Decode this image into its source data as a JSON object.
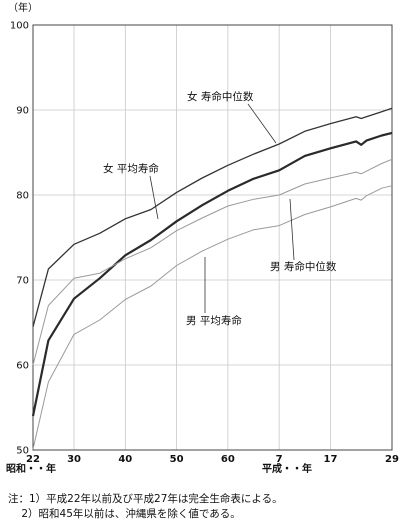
{
  "chart_data": {
    "type": "line",
    "ylabel": "（年）",
    "ylim": [
      50,
      100
    ],
    "yticks": [
      50,
      60,
      70,
      80,
      90,
      100
    ],
    "xlim": [
      1947,
      2017
    ],
    "xticks": [
      {
        "year": 1947,
        "label": "22"
      },
      {
        "year": 1955,
        "label": "30"
      },
      {
        "year": 1965,
        "label": "40"
      },
      {
        "year": 1975,
        "label": "50"
      },
      {
        "year": 1985,
        "label": "60"
      },
      {
        "year": 1995,
        "label": "7"
      },
      {
        "year": 2005,
        "label": "17"
      },
      {
        "year": 2017,
        "label": "29"
      }
    ],
    "era_labels": {
      "showa": "昭和・・年",
      "heisei": "平成・・年"
    },
    "grid": true,
    "series": [
      {
        "name": "女  寿命中位数",
        "style": "thin-dark",
        "x": [
          1947,
          1950,
          1955,
          1960,
          1965,
          1970,
          1975,
          1980,
          1985,
          1990,
          1995,
          2000,
          2005,
          2010,
          2011,
          2012,
          2015,
          2017
        ],
        "y": [
          64.5,
          71.3,
          74.2,
          75.5,
          77.2,
          78.3,
          80.3,
          82.0,
          83.5,
          84.8,
          86.0,
          87.5,
          88.4,
          89.2,
          89.0,
          89.2,
          89.8,
          90.2
        ]
      },
      {
        "name": "女 平均寿命",
        "style": "thick",
        "x": [
          1947,
          1950,
          1955,
          1960,
          1965,
          1970,
          1975,
          1980,
          1985,
          1990,
          1995,
          2000,
          2005,
          2010,
          2011,
          2012,
          2015,
          2017
        ],
        "y": [
          54.0,
          62.9,
          67.8,
          70.2,
          72.9,
          74.7,
          76.9,
          78.8,
          80.5,
          81.9,
          82.9,
          84.6,
          85.5,
          86.3,
          85.9,
          86.4,
          87.0,
          87.3
        ]
      },
      {
        "name": "男  寿命中位数",
        "style": "thin-gray",
        "x": [
          1947,
          1950,
          1955,
          1960,
          1965,
          1970,
          1975,
          1980,
          1985,
          1990,
          1995,
          2000,
          2005,
          2010,
          2011,
          2012,
          2015,
          2017
        ],
        "y": [
          60.0,
          67.0,
          70.2,
          70.8,
          72.5,
          73.8,
          75.8,
          77.3,
          78.7,
          79.5,
          80.0,
          81.3,
          82.0,
          82.7,
          82.5,
          82.8,
          83.7,
          84.2
        ]
      },
      {
        "name": "男  平均寿命",
        "style": "thin-gray",
        "x": [
          1947,
          1950,
          1955,
          1960,
          1965,
          1970,
          1975,
          1980,
          1985,
          1990,
          1995,
          2000,
          2005,
          2010,
          2011,
          2012,
          2015,
          2017
        ],
        "y": [
          50.1,
          58.0,
          63.6,
          65.3,
          67.7,
          69.3,
          71.7,
          73.4,
          74.8,
          75.9,
          76.4,
          77.7,
          78.6,
          79.6,
          79.4,
          79.9,
          80.8,
          81.1
        ]
      }
    ]
  },
  "labels": {
    "f_median": "女  寿命中位数",
    "f_mean": "女 平均寿命",
    "m_median": "男  寿命中位数",
    "m_mean": "男  平均寿命"
  },
  "notes": {
    "line1": "注：1）平成22年以前及び平成27年は完全生命表による。",
    "line2": "    2）昭和45年以前は、沖縄県を除く値である。"
  }
}
